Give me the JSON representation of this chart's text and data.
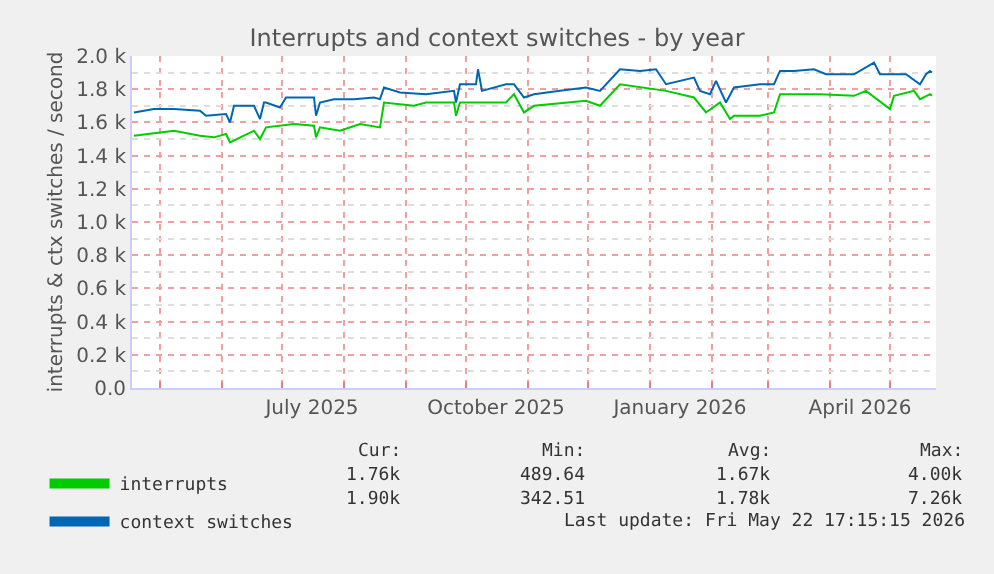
{
  "chart_data": {
    "type": "line",
    "title": "Interrupts and context switches - by year",
    "ylabel": "interrupts & ctx switches / second",
    "xlim": [
      "2025-04-17",
      "2026-05-24"
    ],
    "xticks": [
      {
        "value": "2025-05-01",
        "label": null
      },
      {
        "value": "2025-06-01",
        "label": null
      },
      {
        "value": "2025-07-01",
        "label": null
      },
      {
        "value": "2025-08-01",
        "label": null
      },
      {
        "value": "2025-09-01",
        "label": null
      },
      {
        "value": "2025-10-01",
        "label": null
      },
      {
        "value": "2025-11-01",
        "label": null
      },
      {
        "value": "2025-12-01",
        "label": null
      },
      {
        "value": "2026-01-01",
        "label": null
      },
      {
        "value": "2026-02-01",
        "label": null
      },
      {
        "value": "2026-03-01",
        "label": null
      },
      {
        "value": "2026-04-01",
        "label": null
      },
      {
        "value": "2026-05-01",
        "label": null
      },
      {
        "value": "2025-07-16",
        "label": "July 2025"
      },
      {
        "value": "2025-10-16",
        "label": "October 2025"
      },
      {
        "value": "2026-01-16",
        "label": "January 2026"
      },
      {
        "value": "2026-04-16",
        "label": "April 2026"
      }
    ],
    "ylim": [
      0,
      2000
    ],
    "yticks": [
      {
        "value": 0,
        "label": "0.0"
      },
      {
        "value": 200,
        "label": "0.2 k"
      },
      {
        "value": 400,
        "label": "0.4 k"
      },
      {
        "value": 600,
        "label": "0.6 k"
      },
      {
        "value": 800,
        "label": "0.8 k"
      },
      {
        "value": 1000,
        "label": "1.0 k"
      },
      {
        "value": 1200,
        "label": "1.2 k"
      },
      {
        "value": 1400,
        "label": "1.4 k"
      },
      {
        "value": 1600,
        "label": "1.6 k"
      },
      {
        "value": 1800,
        "label": "1.8 k"
      },
      {
        "value": 2000,
        "label": "2.0 k"
      }
    ],
    "grid": true,
    "legend": "bottom left",
    "marker": "none",
    "line_style": "solid",
    "annotations": [
      "Cur:",
      "Min:",
      "Avg:",
      "Max:",
      "1.76k",
      "489.64",
      "1.67k",
      "4.00k",
      "1.90k",
      "342.51",
      "1.78k",
      "7.26k",
      "Last update: Fri May 22 17:15:15 2026"
    ],
    "series": [
      {
        "name": "interrupts",
        "color": "#00cc00",
        "x": [
          "2025-04-18",
          "2025-05-08",
          "2025-05-21",
          "2025-05-28",
          "2025-06-03",
          "2025-06-05",
          "2025-06-17",
          "2025-06-20",
          "2025-06-23",
          "2025-07-07",
          "2025-07-17",
          "2025-07-18",
          "2025-07-20",
          "2025-07-30",
          "2025-08-09",
          "2025-08-19",
          "2025-08-21",
          "2025-09-05",
          "2025-09-11",
          "2025-09-25",
          "2025-09-26",
          "2025-09-28",
          "2025-10-21",
          "2025-10-25",
          "2025-10-30",
          "2025-11-04",
          "2025-11-30",
          "2025-12-07",
          "2025-12-17",
          "2026-01-09",
          "2026-01-23",
          "2026-01-29",
          "2026-02-05",
          "2026-02-10",
          "2026-02-12",
          "2026-02-25",
          "2026-03-04",
          "2026-03-07",
          "2026-03-27",
          "2026-04-13",
          "2026-04-19",
          "2026-05-01",
          "2026-05-03",
          "2026-05-13",
          "2026-05-16",
          "2026-05-21",
          "2026-05-22"
        ],
        "values": [
          1520,
          1550,
          1520,
          1510,
          1530,
          1480,
          1550,
          1500,
          1570,
          1590,
          1580,
          1510,
          1570,
          1550,
          1590,
          1570,
          1720,
          1700,
          1720,
          1720,
          1640,
          1720,
          1720,
          1770,
          1660,
          1700,
          1730,
          1700,
          1830,
          1790,
          1750,
          1660,
          1720,
          1620,
          1640,
          1640,
          1660,
          1770,
          1770,
          1760,
          1790,
          1680,
          1760,
          1790,
          1740,
          1770,
          1760
        ]
      },
      {
        "name": "context switches",
        "color": "#0066b3",
        "x": [
          "2025-04-18",
          "2025-04-28",
          "2025-05-08",
          "2025-05-21",
          "2025-05-24",
          "2025-06-03",
          "2025-06-05",
          "2025-06-07",
          "2025-06-17",
          "2025-06-20",
          "2025-06-22",
          "2025-06-23",
          "2025-06-30",
          "2025-07-03",
          "2025-07-17",
          "2025-07-18",
          "2025-07-20",
          "2025-07-27",
          "2025-08-06",
          "2025-08-16",
          "2025-08-19",
          "2025-08-21",
          "2025-08-29",
          "2025-09-11",
          "2025-09-25",
          "2025-09-26",
          "2025-09-28",
          "2025-10-06",
          "2025-10-07",
          "2025-10-09",
          "2025-10-21",
          "2025-10-25",
          "2025-10-30",
          "2025-11-04",
          "2025-11-17",
          "2025-11-30",
          "2025-12-07",
          "2025-12-17",
          "2025-12-27",
          "2026-01-04",
          "2026-01-09",
          "2026-01-23",
          "2026-01-26",
          "2026-01-31",
          "2026-02-03",
          "2026-02-08",
          "2026-02-12",
          "2026-02-25",
          "2026-03-04",
          "2026-03-07",
          "2026-03-14",
          "2026-03-24",
          "2026-03-30",
          "2026-04-13",
          "2026-04-23",
          "2026-04-26",
          "2026-05-09",
          "2026-05-16",
          "2026-05-19",
          "2026-05-21",
          "2026-05-22"
        ],
        "values": [
          1660,
          1680,
          1680,
          1670,
          1640,
          1650,
          1600,
          1700,
          1700,
          1620,
          1720,
          1720,
          1690,
          1750,
          1750,
          1640,
          1720,
          1740,
          1740,
          1750,
          1740,
          1810,
          1780,
          1770,
          1790,
          1720,
          1830,
          1830,
          1920,
          1790,
          1830,
          1830,
          1750,
          1770,
          1790,
          1810,
          1790,
          1920,
          1910,
          1920,
          1830,
          1870,
          1790,
          1770,
          1850,
          1720,
          1810,
          1830,
          1830,
          1910,
          1910,
          1920,
          1890,
          1890,
          1960,
          1890,
          1890,
          1830,
          1890,
          1910,
          1900
        ]
      }
    ]
  }
}
